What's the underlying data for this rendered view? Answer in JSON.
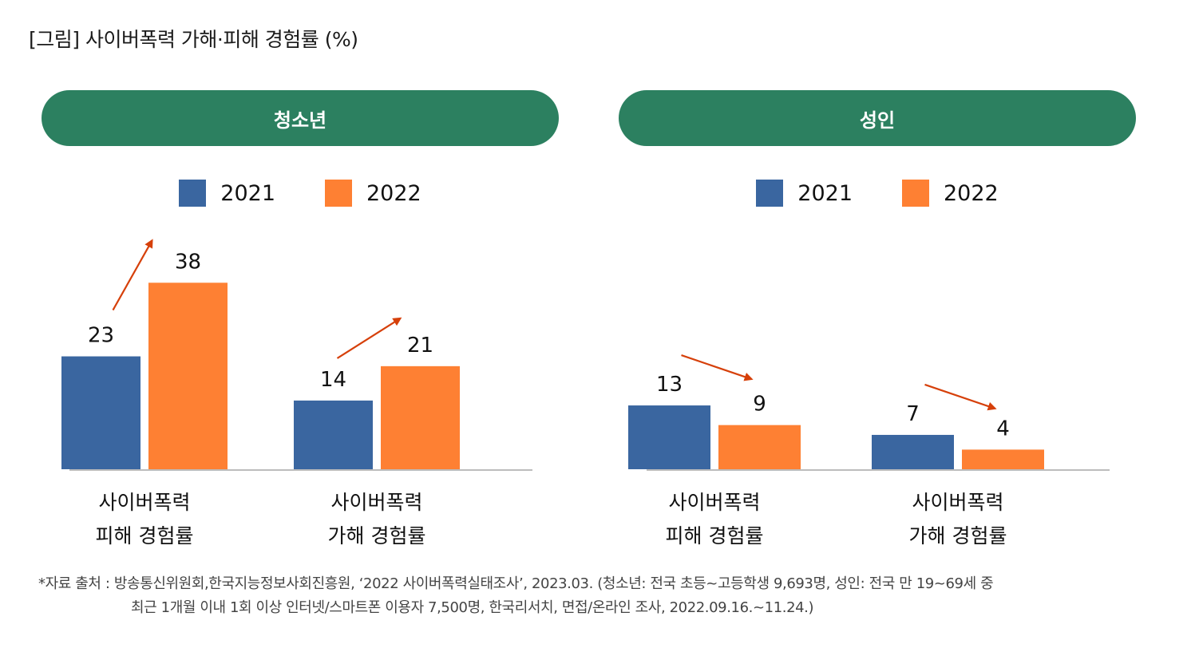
{
  "title": "[그림] 사이버폭력 가해·피해 경험률 (%)",
  "colors": {
    "series_2021": "#3a66a0",
    "series_2022": "#fe8033",
    "header_bg": "#2c8060",
    "arrow": "#d6400a",
    "baseline": "#bcbcbc"
  },
  "chart_data": [
    {
      "type": "bar",
      "title": "청소년",
      "categories": [
        "사이버폭력\n피해 경험률",
        "사이버폭력\n가해 경험률"
      ],
      "category_lines": [
        [
          "사이버폭력",
          "피해 경험률"
        ],
        [
          "사이버폭력",
          "가해 경험률"
        ]
      ],
      "series": [
        {
          "name": "2021",
          "values": [
            23,
            14
          ]
        },
        {
          "name": "2022",
          "values": [
            38,
            21
          ]
        }
      ],
      "trend": [
        "up",
        "up"
      ],
      "xlabel": "",
      "ylabel": "%",
      "ylim": [
        0,
        40
      ],
      "grid": false,
      "legend": "top-center"
    },
    {
      "type": "bar",
      "title": "성인",
      "categories": [
        "사이버폭력\n피해 경험률",
        "사이버폭력\n가해 경험률"
      ],
      "category_lines": [
        [
          "사이버폭력",
          "피해 경험률"
        ],
        [
          "사이버폭력",
          "가해 경험률"
        ]
      ],
      "series": [
        {
          "name": "2021",
          "values": [
            13,
            7
          ]
        },
        {
          "name": "2022",
          "values": [
            9,
            4
          ]
        }
      ],
      "trend": [
        "down",
        "down"
      ],
      "xlabel": "",
      "ylabel": "%",
      "ylim": [
        0,
        40
      ],
      "grid": false,
      "legend": "top-center"
    }
  ],
  "footnote": {
    "line1": "*자료 출처 : 방송통신위원회,한국지능정보사회진흥원,  ‘2022 사이버폭력실태조사’, 2023.03. (청소년: 전국 초등~고등학생 9,693명, 성인: 전국 만 19~69세 중",
    "line2": "최근 1개월 이내 1회 이상 인터넷/스마트폰 이용자 7,500명, 한국리서치, 면접/온라인 조사, 2022.09.16.~11.24.)"
  }
}
